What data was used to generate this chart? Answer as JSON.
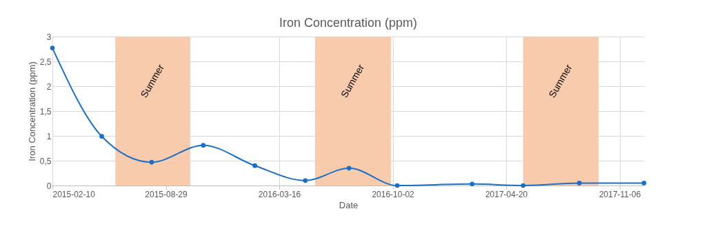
{
  "chart_data": {
    "type": "line",
    "title": "Iron Concentration (ppm)",
    "xlabel": "Date",
    "ylabel": "Iron Concentration (ppm)",
    "x": [
      "2015-02-10",
      "2015-05-08",
      "2015-08-04",
      "2015-11-03",
      "2016-02-02",
      "2016-05-01",
      "2016-07-17",
      "2016-10-10",
      "2017-02-19",
      "2017-05-20",
      "2017-08-27",
      "2017-12-19"
    ],
    "series": [
      {
        "color": "#1a6fc9",
        "values": [
          2.77,
          0.99,
          0.47,
          0.81,
          0.4,
          0.1,
          0.35,
          0,
          0.03,
          0,
          0.05,
          0.05
        ]
      }
    ],
    "xlim": [
      "2015-02-10",
      "2017-12-19"
    ],
    "xticks": [
      "2015-02-10",
      "2015-08-29",
      "2016-03-16",
      "2016-10-02",
      "2017-04-20",
      "2017-11-06"
    ],
    "ylim": [
      0,
      3
    ],
    "yticks": [
      0,
      {
        "value": 0.5,
        "label": "0,5"
      },
      1,
      {
        "value": 1.5,
        "label": "1,5"
      },
      2,
      {
        "value": 2.5,
        "label": "2,5"
      },
      3
    ],
    "bands": [
      {
        "axis": "x",
        "from": "2015-06-01",
        "to": "2015-10-11",
        "label": "Summer",
        "color": "#f7cbac"
      },
      {
        "axis": "x",
        "from": "2016-05-18",
        "to": "2016-09-29",
        "label": "Summer",
        "color": "#f7cbac"
      },
      {
        "axis": "x",
        "from": "2017-05-20",
        "to": "2017-09-30",
        "label": "Summer",
        "color": "#f7cbac"
      }
    ],
    "grid": true,
    "marker": "circle",
    "line_style": "solid"
  }
}
